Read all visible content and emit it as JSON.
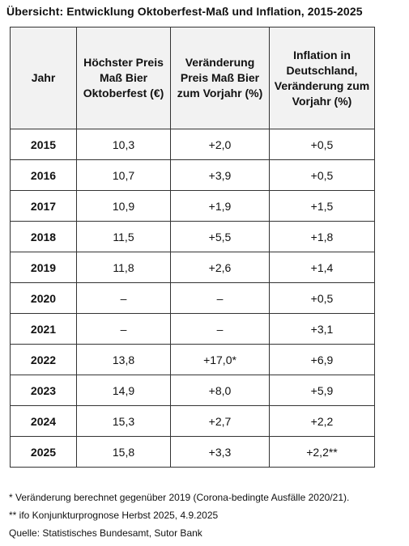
{
  "title": "Übersicht: Entwicklung Oktoberfest-Maß und Inflation, 2015-2025",
  "table": {
    "headers": [
      "Jahr",
      "Höchster Preis Maß Bier Oktoberfest (€)",
      "Veränderung Preis Maß Bier zum Vorjahr (%)",
      "Inflation in Deutschland, Veränderung zum Vorjahr (%)"
    ],
    "rows": [
      [
        "2015",
        "10,3",
        "+2,0",
        "+0,5"
      ],
      [
        "2016",
        "10,7",
        "+3,9",
        "+0,5"
      ],
      [
        "2017",
        "10,9",
        "+1,9",
        "+1,5"
      ],
      [
        "2018",
        "11,5",
        "+5,5",
        "+1,8"
      ],
      [
        "2019",
        "11,8",
        "+2,6",
        "+1,4"
      ],
      [
        "2020",
        "–",
        "–",
        "+0,5"
      ],
      [
        "2021",
        "–",
        "–",
        "+3,1"
      ],
      [
        "2022",
        "13,8",
        "+17,0*",
        "+6,9"
      ],
      [
        "2023",
        "14,9",
        "+8,0",
        "+5,9"
      ],
      [
        "2024",
        "15,3",
        "+2,7",
        "+2,2"
      ],
      [
        "2025",
        "15,8",
        "+3,3",
        "+2,2**"
      ]
    ]
  },
  "footnotes": {
    "note1": "* Veränderung berechnet gegenüber 2019 (Corona-bedingte Ausfälle 2020/21).",
    "note2": "** ifo Konjunkturprognose Herbst 2025, 4.9.2025",
    "source": "Quelle: Statistisches Bundesamt, Sutor Bank"
  }
}
